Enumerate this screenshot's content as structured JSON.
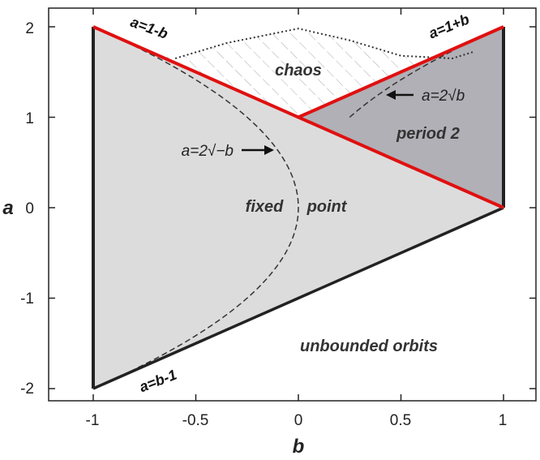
{
  "axes": {
    "xlabel": "b",
    "ylabel": "a",
    "xlim": [
      -1.2,
      1.1
    ],
    "ylim": [
      -2.2,
      2.2
    ],
    "xticks": [
      "-1",
      "-0.5",
      "0",
      "0.5",
      "1"
    ],
    "yticks": [
      "-2",
      "-1",
      "0",
      "1",
      "2"
    ]
  },
  "regions": {
    "chaos": "chaos",
    "period2": "period 2",
    "fixed_point_1": "fixed",
    "fixed_point_2": "point",
    "unbounded": "unbounded orbits"
  },
  "line_labels": {
    "upper_left": "a=1-b",
    "upper_right": "a=1+b",
    "lower": "a=b-1"
  },
  "curve_labels": {
    "sqrt_pos": "a=2√b",
    "sqrt_neg": "a=2√−b"
  },
  "colors": {
    "fixed_region": "#dcdcdc",
    "period2_region": "#b0b0b6",
    "boundary_red": "#e01010",
    "boundary_black": "#222222"
  },
  "chart_data": {
    "type": "region-diagram",
    "lines": [
      {
        "label": "a=1-b",
        "b": [
          -1,
          1
        ],
        "a": [
          2,
          0
        ]
      },
      {
        "label": "a=1+b",
        "b": [
          0,
          1
        ],
        "a": [
          1,
          2
        ]
      },
      {
        "label": "a=b-1",
        "b": [
          -1,
          1
        ],
        "a": [
          -2,
          0
        ]
      }
    ],
    "curves": [
      {
        "label": "a=2√b",
        "formula": "a = 2*sqrt(b)",
        "b_range": [
          0.25,
          0.75
        ]
      },
      {
        "label": "a=2√−b",
        "formula": "a = ±2*sqrt(-b)",
        "b_range": [
          -1,
          0
        ]
      }
    ],
    "regions": [
      "chaos",
      "period 2",
      "fixed point",
      "unbounded orbits"
    ]
  }
}
